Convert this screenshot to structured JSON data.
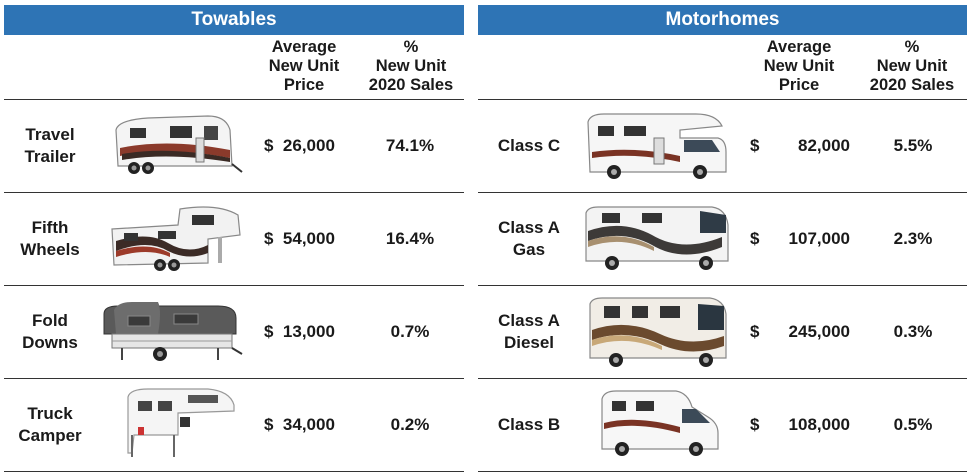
{
  "towables": {
    "title": "Towables",
    "col_price": "Average\nNew Unit\nPrice",
    "col_pct": "%\nNew Unit\n2020 Sales",
    "rows": [
      {
        "label": "Travel\nTrailer",
        "currency": "$",
        "price": "26,000",
        "pct": "74.1%",
        "icon": "travel-trailer-image"
      },
      {
        "label": "Fifth\nWheels",
        "currency": "$",
        "price": "54,000",
        "pct": "16.4%",
        "icon": "fifth-wheel-image"
      },
      {
        "label": "Fold\nDowns",
        "currency": "$",
        "price": "13,000",
        "pct": "0.7%",
        "icon": "fold-down-camper-image"
      },
      {
        "label": "Truck\nCamper",
        "currency": "$",
        "price": "34,000",
        "pct": "0.2%",
        "icon": "truck-camper-image"
      }
    ]
  },
  "motorhomes": {
    "title": "Motorhomes",
    "col_price": "Average\nNew Unit\nPrice",
    "col_pct": "%\nNew Unit\n2020 Sales",
    "rows": [
      {
        "label": "Class C",
        "currency": "$",
        "price": "82,000",
        "pct": "5.5%",
        "icon": "class-c-motorhome-image"
      },
      {
        "label": "Class A\nGas",
        "currency": "$",
        "price": "107,000",
        "pct": "2.3%",
        "icon": "class-a-gas-motorhome-image"
      },
      {
        "label": "Class A\nDiesel",
        "currency": "$",
        "price": "245,000",
        "pct": "0.3%",
        "icon": "class-a-diesel-motorhome-image"
      },
      {
        "label": "Class B",
        "currency": "$",
        "price": "108,000",
        "pct": "0.5%",
        "icon": "class-b-van-image"
      }
    ]
  },
  "colors": {
    "banner": "#2e74b5",
    "rule": "#333333"
  }
}
